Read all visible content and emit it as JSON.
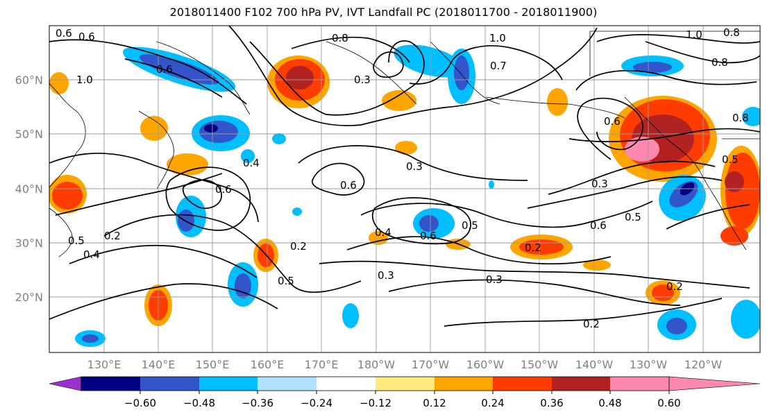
{
  "figure": {
    "title": "2018011400 F102 700 hPa PV, IVT Landfall PC (2018011700 - 2018011900)"
  },
  "map": {
    "lon_labels": [
      "130°E",
      "140°E",
      "150°E",
      "160°E",
      "170°E",
      "180°W",
      "170°W",
      "160°W",
      "150°W",
      "140°W",
      "130°W",
      "120°W"
    ],
    "lat_labels": [
      "20°N",
      "30°N",
      "40°N",
      "50°N",
      "60°N"
    ],
    "contour_labels": [
      "0.6",
      "0.6",
      "1.0",
      "1.0",
      "0.8",
      "0.8",
      "0.3",
      "0.7",
      "0.6",
      "0.8",
      "0.6",
      "0.4",
      "0.3",
      "0.6",
      "0.6",
      "0.3",
      "0.5",
      "0.6",
      "0.5",
      "0.4",
      "0.6",
      "0.5",
      "0.2",
      "0.2",
      "0.3",
      "0.3",
      "0.2",
      "0.2",
      "0.5",
      "0.4",
      "0.2",
      "0.5",
      "1.0",
      "0.8"
    ]
  },
  "colorbar": {
    "colors": [
      "#9b30d0",
      "#000080",
      "#3355cc",
      "#00bfff",
      "#b0e2ff",
      "#ffffff",
      "#ffea80",
      "#ffa500",
      "#ff3c00",
      "#b22222",
      "#ff88b0"
    ],
    "tick_labels": [
      "−0.60",
      "−0.48",
      "−0.36",
      "−0.24",
      "−0.12",
      "0.12",
      "0.24",
      "0.36",
      "0.48",
      "0.60"
    ]
  },
  "colors": {
    "contour": "#000000",
    "grid": "#9a9a9a",
    "axis_label": "#808080"
  }
}
